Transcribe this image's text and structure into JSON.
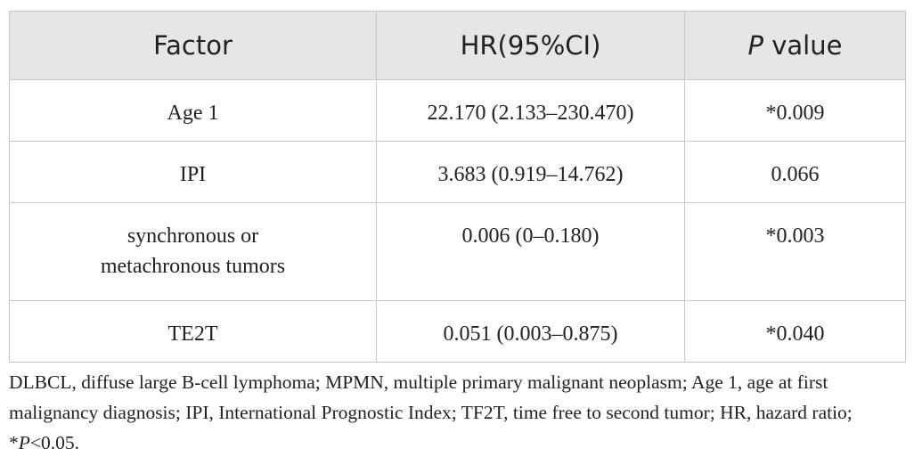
{
  "table": {
    "header": [
      [
        "Factor"
      ],
      [
        "HR(95%CI)"
      ],
      [
        "P",
        " value"
      ]
    ],
    "rows": [
      [
        "Age 1",
        "22.170 (2.133–230.470)",
        "*0.009"
      ],
      [
        "IPI",
        "3.683 (0.919–14.762)",
        "0.066"
      ],
      [
        "synchronous or metachronous tumors",
        "0.006 (0–0.180)",
        "*0.003"
      ],
      [
        "TE2T",
        "0.051 (0.003–0.875)",
        "*0.040"
      ]
    ]
  },
  "footnote": [
    "DLBCL, diffuse large B-cell lymphoma; MPMN, multiple primary malignant neoplasm; Age 1, age at first malignancy diagnosis; IPI, International Prognostic Index; TF2T, time free to second tumor; HR, hazard ratio; *",
    "P",
    "<0.05."
  ]
}
